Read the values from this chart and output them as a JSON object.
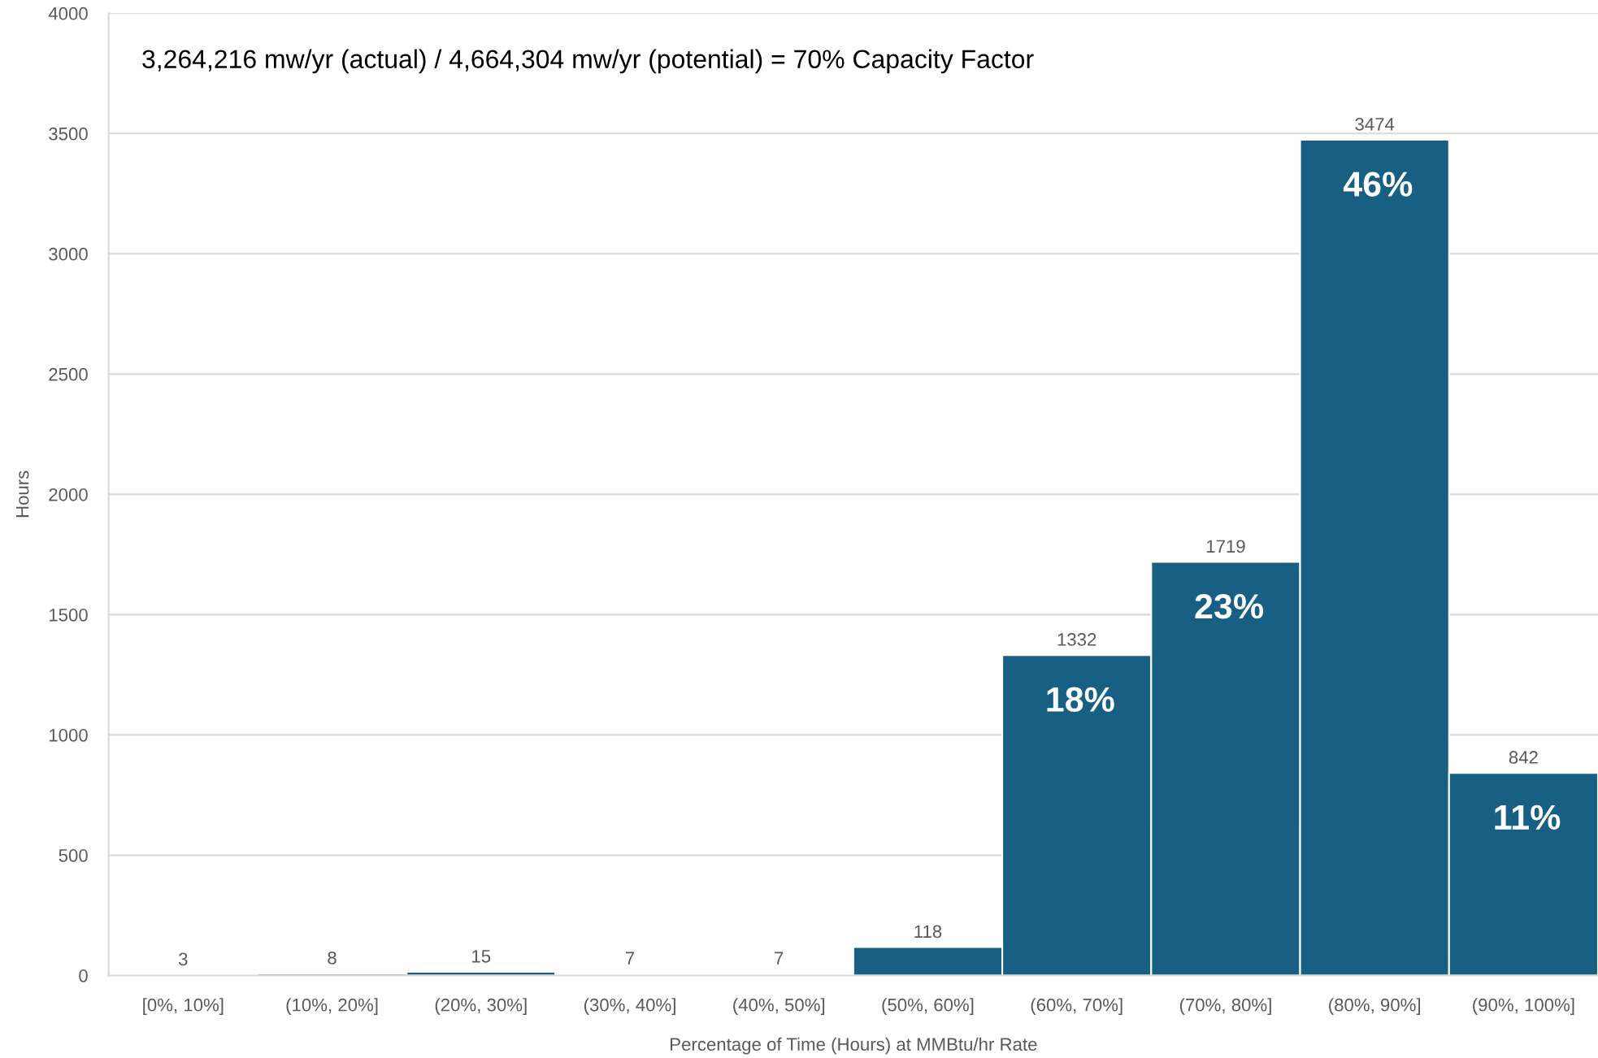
{
  "chart_data": {
    "type": "bar",
    "title": "3,264,216 mw/yr (actual) / 4,664,304 mw/yr (potential) = 70% Capacity Factor",
    "xlabel": "Percentage of Time (Hours) at MMBtu/hr Rate",
    "ylabel": "Hours",
    "categories": [
      "[0%, 10%]",
      "(10%, 20%]",
      "(20%, 30%]",
      "(30%, 40%]",
      "(40%, 50%]",
      "(50%, 60%]",
      "(60%, 70%]",
      "(70%, 80%]",
      "(80%, 90%]",
      "(90%, 100%]"
    ],
    "values": [
      3,
      8,
      15,
      7,
      7,
      118,
      1332,
      1719,
      3474,
      842
    ],
    "color": "#176083",
    "ylim": [
      0,
      4000
    ],
    "yticks": [
      0,
      500,
      1000,
      1500,
      2000,
      2500,
      3000,
      3500,
      4000
    ],
    "grid": "y",
    "data_labels": true,
    "annotations": [
      {
        "text": "18%",
        "x": "(60%, 70%]",
        "y": 1332
      },
      {
        "text": "23%",
        "x": "(70%, 80%]",
        "y": 1719
      },
      {
        "text": "46%",
        "x": "(80%, 90%]",
        "y": 3474
      },
      {
        "text": "11%",
        "x": "(90%, 100%]",
        "y": 842
      }
    ]
  }
}
